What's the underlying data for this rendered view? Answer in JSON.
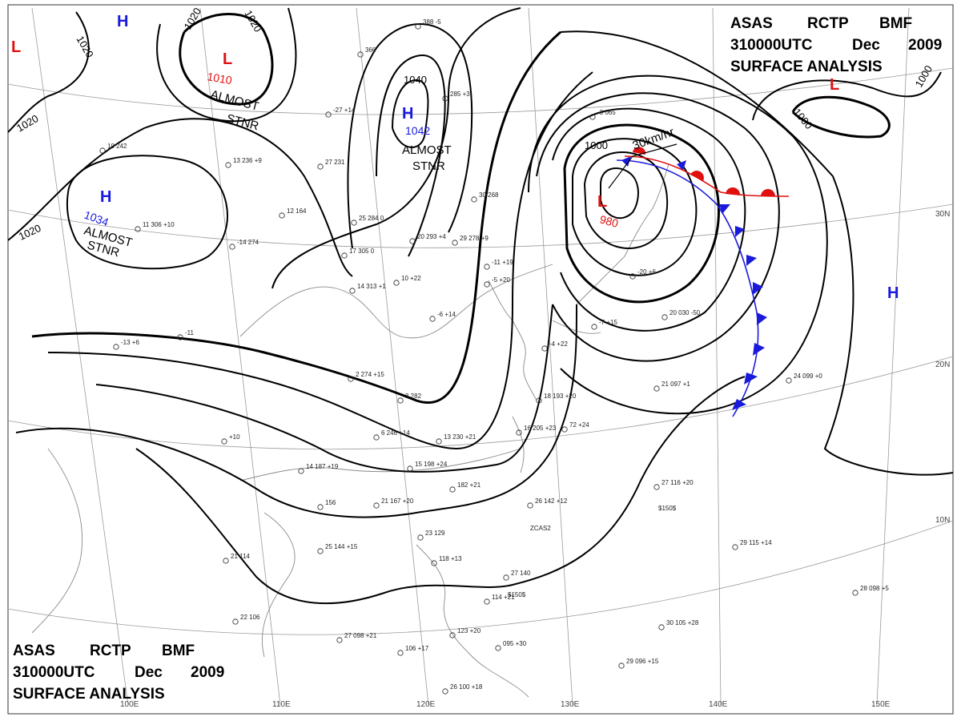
{
  "header_top": {
    "line1": [
      "ASAS",
      "RCTP",
      "BMF"
    ],
    "line2": [
      "310000UTC",
      "Dec",
      "2009"
    ],
    "line3": "SURFACE ANALYSIS"
  },
  "header_bottom": {
    "line1": [
      "ASAS",
      "RCTP",
      "BMF"
    ],
    "line2": [
      "310000UTC",
      "Dec",
      "2009"
    ],
    "line3": "SURFACE ANALYSIS"
  },
  "lon_labels": [
    "100E",
    "110E",
    "120E",
    "130E",
    "140E",
    "150E"
  ],
  "lat_labels": [
    "30N",
    "20N",
    "10N"
  ],
  "isobar_labels": [
    "1020",
    "1020",
    "1020",
    "1020",
    "1020",
    "1040",
    "1000",
    "1000",
    "1000"
  ],
  "centers": {
    "high_north": {
      "symbol": "H",
      "color": "#1a1adc"
    },
    "high_west": {
      "symbol": "H",
      "color": "#1a1adc",
      "pressure": "1034",
      "note1": "ALMOST",
      "note2": "STNR"
    },
    "high_mongolia": {
      "symbol": "H",
      "color": "#1a1adc",
      "pressure": "1042",
      "note1": "ALMOST",
      "note2": "STNR"
    },
    "high_pacific": {
      "symbol": "H",
      "color": "#1a1adc"
    },
    "low_siberia": {
      "symbol": "L",
      "color": "#e01010",
      "pressure": "1010",
      "note1": "ALMOST",
      "note2": "STNR"
    },
    "low_japan": {
      "symbol": "L",
      "color": "#e01010",
      "pressure": "980",
      "motion": "30km/hr"
    },
    "low_ne": {
      "symbol": "L",
      "color": "#e01010"
    },
    "low_nw": {
      "symbol": "L",
      "color": "#e01010"
    }
  },
  "front_colors": {
    "cold": "#1a1adc",
    "warm": "#e01010"
  },
  "stations": [
    "29 278 +9",
    "25 284 0",
    "17 305 0",
    "14 313 +1",
    "20 293 +4",
    "30 268",
    "12 164",
    "13 236 +9",
    "27 231",
    "11 306 +10",
    "10 242",
    "388 -5",
    "285 +3",
    "366",
    "-14 274",
    "10 +22",
    "-6 +14",
    "-27 +14",
    "2 274 +15",
    "3 282",
    "6 246 +14",
    "13 230 +21",
    "15 198 +24",
    "14 187 +19",
    "182 +21",
    "21 167 +20",
    "156",
    "16 205 +23",
    "18 193 +20",
    "72 +24",
    "26 142 +12",
    "27 116 +20",
    "25 144 +15",
    "21 114",
    "22 106",
    "27 098 +21",
    "106 +17",
    "123 +20",
    "095 +30",
    "26 100 +18",
    "23 129",
    "118 +13",
    "27 140",
    "114 +21",
    "20 030 -50",
    "21 097 +1",
    "24 099 +0",
    "29 115 +14",
    "30 105 +28",
    "29 096 +15",
    "28 098 +5",
    "-13 +6",
    "-11",
    "+10",
    "-3 065",
    "-20 +6",
    "-11 +19",
    "-5 +20",
    "-7 +15",
    "-4 +22"
  ],
  "station_marks": [
    "ZCAS2",
    "$150$",
    "$150$"
  ]
}
